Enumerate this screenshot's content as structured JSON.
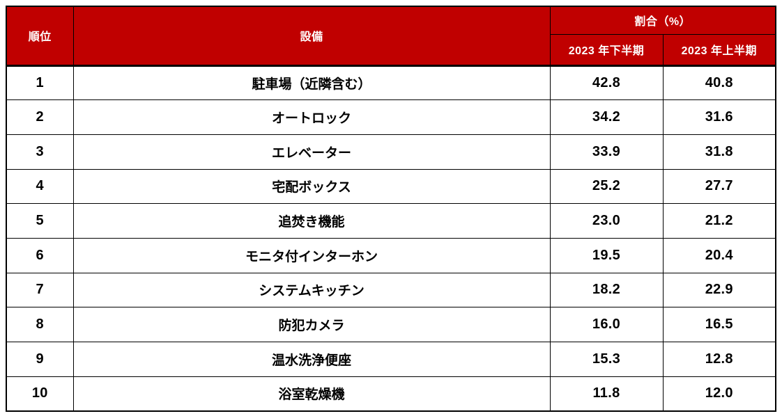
{
  "colors": {
    "header_bg": "#c00000",
    "header_text": "#ffffff",
    "body_text": "#000000",
    "border": "#000000",
    "body_bg": "#ffffff"
  },
  "table": {
    "headers": {
      "rank": "順位",
      "equipment": "設備",
      "ratio_group": "割合（%）",
      "period_h2": "2023 年下半期",
      "period_h1": "2023 年上半期"
    },
    "rows": [
      {
        "rank": "1",
        "equipment": "駐車場（近隣含む）",
        "h2_2023": "42.8",
        "h1_2023": "40.8"
      },
      {
        "rank": "2",
        "equipment": "オートロック",
        "h2_2023": "34.2",
        "h1_2023": "31.6"
      },
      {
        "rank": "3",
        "equipment": "エレベーター",
        "h2_2023": "33.9",
        "h1_2023": "31.8"
      },
      {
        "rank": "4",
        "equipment": "宅配ボックス",
        "h2_2023": "25.2",
        "h1_2023": "27.7"
      },
      {
        "rank": "5",
        "equipment": "追焚き機能",
        "h2_2023": "23.0",
        "h1_2023": "21.2"
      },
      {
        "rank": "6",
        "equipment": "モニタ付インターホン",
        "h2_2023": "19.5",
        "h1_2023": "20.4"
      },
      {
        "rank": "7",
        "equipment": "システムキッチン",
        "h2_2023": "18.2",
        "h1_2023": "22.9"
      },
      {
        "rank": "8",
        "equipment": "防犯カメラ",
        "h2_2023": "16.0",
        "h1_2023": "16.5"
      },
      {
        "rank": "9",
        "equipment": "温水洗浄便座",
        "h2_2023": "15.3",
        "h1_2023": "12.8"
      },
      {
        "rank": "10",
        "equipment": "浴室乾燥機",
        "h2_2023": "11.8",
        "h1_2023": "12.0"
      }
    ]
  },
  "chart_data": {
    "type": "table",
    "title": "",
    "column_groups": [
      {
        "label": "割合（%）",
        "columns": [
          "2023 年下半期",
          "2023 年上半期"
        ]
      }
    ],
    "columns": [
      "順位",
      "設備",
      "2023 年下半期",
      "2023 年上半期"
    ],
    "rows": [
      [
        1,
        "駐車場（近隣含む）",
        42.8,
        40.8
      ],
      [
        2,
        "オートロック",
        34.2,
        31.6
      ],
      [
        3,
        "エレベーター",
        33.9,
        31.8
      ],
      [
        4,
        "宅配ボックス",
        25.2,
        27.7
      ],
      [
        5,
        "追焚き機能",
        23.0,
        21.2
      ],
      [
        6,
        "モニタ付インターホン",
        19.5,
        20.4
      ],
      [
        7,
        "システムキッチン",
        18.2,
        22.9
      ],
      [
        8,
        "防犯カメラ",
        16.0,
        16.5
      ],
      [
        9,
        "温水洗浄便座",
        15.3,
        12.8
      ],
      [
        10,
        "浴室乾燥機",
        11.8,
        12.0
      ]
    ]
  }
}
